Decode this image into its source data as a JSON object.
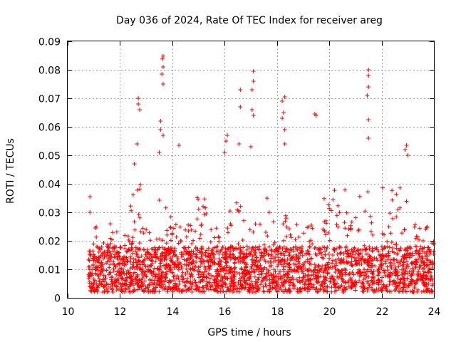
{
  "chart_data": {
    "type": "scatter",
    "title": "Day 036 of 2024, Rate Of TEC Index for receiver areg",
    "xlabel": "GPS time / hours",
    "ylabel": "ROTI / TECUs",
    "xlim": [
      10,
      24
    ],
    "ylim": [
      0,
      0.09
    ],
    "x_ticks": [
      10,
      12,
      14,
      16,
      18,
      20,
      22,
      24
    ],
    "x_tick_labels": [
      "10",
      "12",
      "14",
      "16",
      "18",
      "20",
      "22",
      "24"
    ],
    "y_ticks": [
      0,
      0.01,
      0.02,
      0.03,
      0.04,
      0.05,
      0.06,
      0.07,
      0.08,
      0.09
    ],
    "y_tick_labels": [
      "0",
      "0.01",
      "0.02",
      "0.03",
      "0.04",
      "0.05",
      "0.06",
      "0.07",
      "0.08",
      "0.09"
    ],
    "grid": true,
    "marker": "+",
    "color": "#ff0000",
    "data_start_hour": 10.8,
    "data_end_hour": 24.0,
    "baseline_range": [
      0.002,
      0.018
    ],
    "notable_points": [
      {
        "x": 10.85,
        "y": 0.0355
      },
      {
        "x": 10.85,
        "y": 0.03
      },
      {
        "x": 12.7,
        "y": 0.07
      },
      {
        "x": 12.7,
        "y": 0.068
      },
      {
        "x": 12.75,
        "y": 0.066
      },
      {
        "x": 12.65,
        "y": 0.054
      },
      {
        "x": 12.55,
        "y": 0.047
      },
      {
        "x": 13.65,
        "y": 0.0848
      },
      {
        "x": 13.62,
        "y": 0.0838
      },
      {
        "x": 13.65,
        "y": 0.081
      },
      {
        "x": 13.6,
        "y": 0.0785
      },
      {
        "x": 13.65,
        "y": 0.075
      },
      {
        "x": 13.55,
        "y": 0.062
      },
      {
        "x": 13.55,
        "y": 0.059
      },
      {
        "x": 13.65,
        "y": 0.057
      },
      {
        "x": 13.5,
        "y": 0.051
      },
      {
        "x": 14.25,
        "y": 0.0535
      },
      {
        "x": 16.1,
        "y": 0.057
      },
      {
        "x": 16.05,
        "y": 0.055
      },
      {
        "x": 16.0,
        "y": 0.051
      },
      {
        "x": 16.6,
        "y": 0.073
      },
      {
        "x": 16.6,
        "y": 0.067
      },
      {
        "x": 16.55,
        "y": 0.054
      },
      {
        "x": 17.1,
        "y": 0.0795
      },
      {
        "x": 17.1,
        "y": 0.076
      },
      {
        "x": 17.05,
        "y": 0.073
      },
      {
        "x": 17.05,
        "y": 0.066
      },
      {
        "x": 17.1,
        "y": 0.064
      },
      {
        "x": 17.0,
        "y": 0.053
      },
      {
        "x": 18.3,
        "y": 0.0705
      },
      {
        "x": 18.2,
        "y": 0.069
      },
      {
        "x": 18.25,
        "y": 0.065
      },
      {
        "x": 18.2,
        "y": 0.063
      },
      {
        "x": 18.3,
        "y": 0.059
      },
      {
        "x": 18.3,
        "y": 0.054
      },
      {
        "x": 19.45,
        "y": 0.0645
      },
      {
        "x": 19.5,
        "y": 0.064
      },
      {
        "x": 21.5,
        "y": 0.08
      },
      {
        "x": 21.5,
        "y": 0.078
      },
      {
        "x": 21.5,
        "y": 0.074
      },
      {
        "x": 21.45,
        "y": 0.071
      },
      {
        "x": 21.5,
        "y": 0.0625
      },
      {
        "x": 21.5,
        "y": 0.056
      },
      {
        "x": 22.95,
        "y": 0.0535
      },
      {
        "x": 22.9,
        "y": 0.052
      },
      {
        "x": 23.0,
        "y": 0.05
      }
    ]
  }
}
